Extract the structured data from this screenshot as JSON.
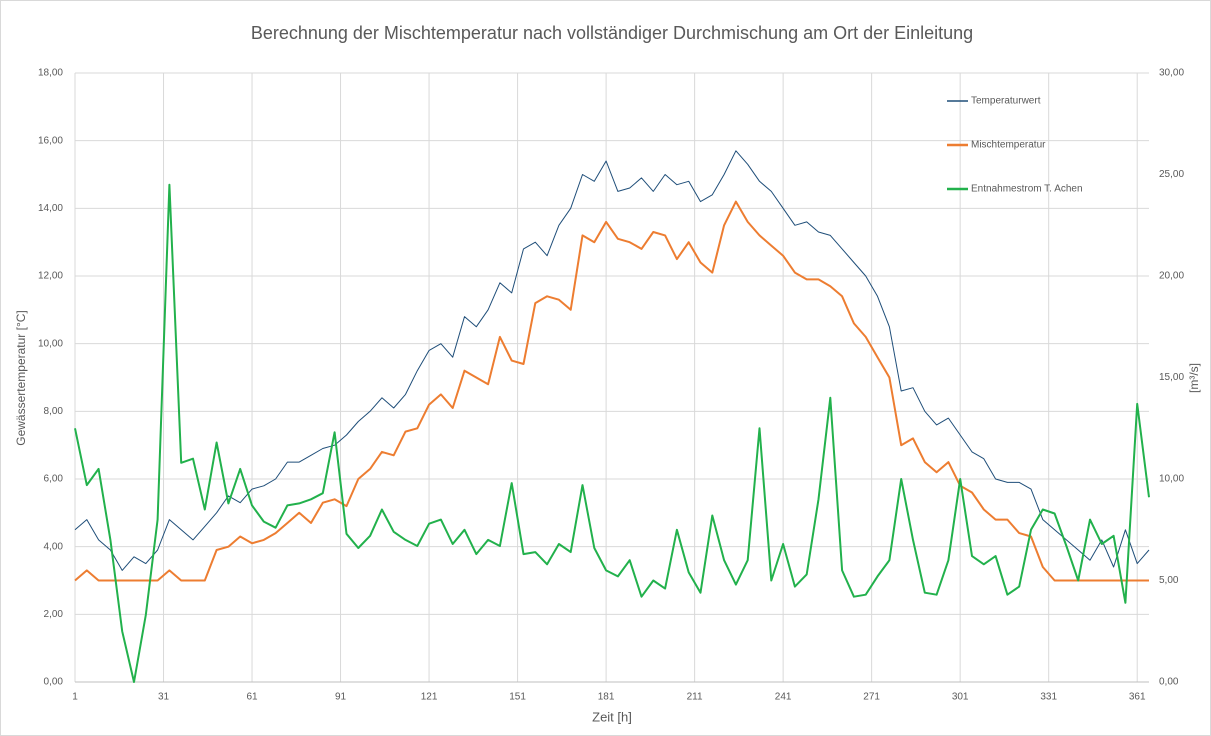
{
  "chart_data": {
    "type": "line",
    "title": "Berechnung der Mischtemperatur nach vollständiger Durchmischung am Ort der Einleitung",
    "xlabel": "Zeit [h]",
    "ylabel": "Gewässertemperatur [°C]",
    "y2label": "[m³/s]",
    "x": [
      1,
      5,
      9,
      13,
      17,
      21,
      25,
      29,
      33,
      37,
      41,
      45,
      49,
      53,
      57,
      61,
      65,
      69,
      73,
      77,
      81,
      85,
      89,
      93,
      97,
      101,
      105,
      109,
      113,
      117,
      121,
      125,
      129,
      133,
      137,
      141,
      145,
      149,
      153,
      157,
      161,
      165,
      169,
      173,
      177,
      181,
      185,
      189,
      193,
      197,
      201,
      205,
      209,
      213,
      217,
      221,
      225,
      229,
      233,
      237,
      241,
      245,
      249,
      253,
      257,
      261,
      265,
      269,
      273,
      277,
      281,
      285,
      289,
      293,
      297,
      301,
      305,
      309,
      313,
      317,
      321,
      325,
      329,
      333,
      337,
      341,
      345,
      349,
      353,
      357,
      361,
      365
    ],
    "series": [
      {
        "name": "Temperaturwert",
        "color": "#1f4e79",
        "width": 1,
        "values": [
          4.5,
          4.8,
          4.2,
          3.9,
          3.3,
          3.7,
          3.5,
          3.9,
          4.8,
          4.5,
          4.2,
          4.6,
          5.0,
          5.5,
          5.3,
          5.7,
          5.8,
          6.0,
          6.5,
          6.5,
          6.7,
          6.9,
          7.0,
          7.3,
          7.7,
          8.0,
          8.4,
          8.1,
          8.5,
          9.2,
          9.8,
          10.0,
          9.6,
          10.8,
          10.5,
          11.0,
          11.8,
          11.5,
          12.8,
          13.0,
          12.6,
          13.5,
          14.0,
          15.0,
          14.8,
          15.4,
          14.5,
          14.6,
          14.9,
          14.5,
          15.0,
          14.7,
          14.8,
          14.2,
          14.4,
          15.0,
          15.7,
          15.3,
          14.8,
          14.5,
          14.0,
          13.5,
          13.6,
          13.3,
          13.2,
          12.8,
          12.4,
          12.0,
          11.4,
          10.5,
          8.6,
          8.7,
          8.0,
          7.6,
          7.8,
          7.3,
          6.8,
          6.6,
          6.0,
          5.9,
          5.9,
          5.7,
          4.8,
          4.5,
          4.2,
          3.9,
          3.6,
          4.2,
          3.4,
          4.5,
          3.5,
          3.9
        ]
      },
      {
        "name": "Mischtemperatur",
        "color": "#ed7d31",
        "width": 2,
        "values": [
          3.0,
          3.3,
          3.0,
          3.0,
          3.0,
          3.0,
          3.0,
          3.0,
          3.3,
          3.0,
          3.0,
          3.0,
          3.9,
          4.0,
          4.3,
          4.1,
          4.2,
          4.4,
          4.7,
          5.0,
          4.7,
          5.3,
          5.4,
          5.2,
          6.0,
          6.3,
          6.8,
          6.7,
          7.4,
          7.5,
          8.2,
          8.5,
          8.1,
          9.2,
          9.0,
          8.8,
          10.2,
          9.5,
          9.4,
          11.2,
          11.4,
          11.3,
          11.0,
          13.2,
          13.0,
          13.6,
          13.1,
          13.0,
          12.8,
          13.3,
          13.2,
          12.5,
          13.0,
          12.4,
          12.1,
          13.5,
          14.2,
          13.6,
          13.2,
          12.9,
          12.6,
          12.1,
          11.9,
          11.9,
          11.7,
          11.4,
          10.6,
          10.2,
          9.6,
          9.0,
          7.0,
          7.2,
          6.5,
          6.2,
          6.5,
          5.8,
          5.6,
          5.1,
          4.8,
          4.8,
          4.4,
          4.3,
          3.4,
          3.0,
          3.0,
          3.0,
          3.0,
          3.0,
          3.0,
          3.0,
          3.0,
          3.0
        ]
      },
      {
        "name": "Entnahmestrom T. Achen",
        "color": "#22b14c",
        "width": 2,
        "axis": "y2",
        "values": [
          12.5,
          9.7,
          10.5,
          7.0,
          2.5,
          0.0,
          3.3,
          8.0,
          24.5,
          10.8,
          11.0,
          8.5,
          11.8,
          8.8,
          10.5,
          8.7,
          7.9,
          7.6,
          8.7,
          8.8,
          9.0,
          9.3,
          12.3,
          7.3,
          6.6,
          7.2,
          8.5,
          7.4,
          7.0,
          6.7,
          7.8,
          8.0,
          6.8,
          7.5,
          6.3,
          7.0,
          6.7,
          9.8,
          6.3,
          6.4,
          5.8,
          6.8,
          6.4,
          9.7,
          6.6,
          5.5,
          5.2,
          6.0,
          4.2,
          5.0,
          4.6,
          7.5,
          5.4,
          4.4,
          8.2,
          6.0,
          4.8,
          6.0,
          12.5,
          5.0,
          6.8,
          4.7,
          5.3,
          9.0,
          14.0,
          5.5,
          4.2,
          4.3,
          5.2,
          6.0,
          10.0,
          7.0,
          4.4,
          4.3,
          6.0,
          10.0,
          6.2,
          5.8,
          6.2,
          4.3,
          4.7,
          7.5,
          8.5,
          8.3,
          6.7,
          5.0,
          8.0,
          6.8,
          7.2,
          3.9,
          13.7,
          9.1
        ]
      }
    ],
    "xlim": [
      1,
      365
    ],
    "xticks": [
      1,
      31,
      61,
      91,
      121,
      151,
      181,
      211,
      241,
      271,
      301,
      331,
      361
    ],
    "ylim": [
      0,
      18
    ],
    "yticks": [
      {
        "value": 0,
        "label": "0,00"
      },
      {
        "value": 2,
        "label": "2,00"
      },
      {
        "value": 4,
        "label": "4,00"
      },
      {
        "value": 6,
        "label": "6,00"
      },
      {
        "value": 8,
        "label": "8,00"
      },
      {
        "value": 10,
        "label": "10,00"
      },
      {
        "value": 12,
        "label": "12,00"
      },
      {
        "value": 14,
        "label": "14,00"
      },
      {
        "value": 16,
        "label": "16,00"
      },
      {
        "value": 18,
        "label": "18,00"
      }
    ],
    "y2lim": [
      0,
      30
    ],
    "y2ticks": [
      {
        "value": 0,
        "label": "0,00"
      },
      {
        "value": 5,
        "label": "5,00"
      },
      {
        "value": 10,
        "label": "10,00"
      },
      {
        "value": 15,
        "label": "15,00"
      },
      {
        "value": 20,
        "label": "20,00"
      },
      {
        "value": 25,
        "label": "25,00"
      },
      {
        "value": 30,
        "label": "30,00"
      }
    ],
    "grid": true,
    "legend": "top-right"
  }
}
